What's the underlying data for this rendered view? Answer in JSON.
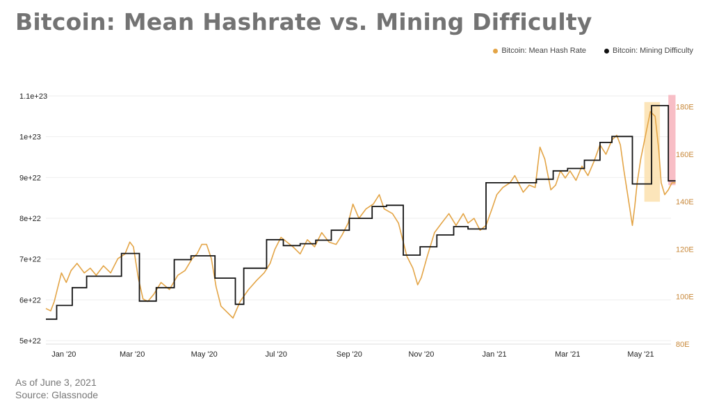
{
  "title": "Bitcoin: Mean Hashrate vs. Mining Difficulty",
  "footer": {
    "as_of": "As of June 3, 2021",
    "source": "Source: Glassnode"
  },
  "colors": {
    "hashrate": "#E3A445",
    "difficulty": "#111111",
    "highlight_orange": "#FBE1AE",
    "highlight_red": "#F7B3BC",
    "grid": "#EEEEEE"
  },
  "chart_data": {
    "type": "line",
    "title": "Bitcoin: Mean Hashrate vs. Mining Difficulty",
    "legend_position": "top-right",
    "grid": true,
    "x_range": [
      "2019-12-24",
      "2021-06-03"
    ],
    "x_ticks": [
      "Jan '20",
      "Mar '20",
      "May '20",
      "Jul '20",
      "Sep '20",
      "Nov '20",
      "Jan '21",
      "Mar '21",
      "May '21"
    ],
    "y_left": {
      "ticks": [
        "1.1e+23",
        "1e+23",
        "9e+22",
        "8e+22",
        "7e+22",
        "6e+22",
        "5e+22"
      ],
      "range": [
        5e+22,
        1.1e+23
      ]
    },
    "y_right": {
      "ticks": [
        "180E",
        "160E",
        "140E",
        "120E",
        "100E",
        "80E"
      ],
      "range": [
        80,
        184
      ]
    },
    "highlights": [
      {
        "from": "2021-05-06",
        "to": "2021-05-19",
        "y_from": 140,
        "y_to": 182,
        "color": "orange"
      },
      {
        "from": "2021-05-26",
        "to": "2021-06-01",
        "y_from": 147,
        "y_to": 185,
        "color": "red"
      }
    ],
    "series": [
      {
        "name": "Bitcoin: Mean Hash Rate",
        "axis": "right",
        "color": "#E3A445",
        "points": [
          [
            "2019-12-24",
            95
          ],
          [
            "2019-12-28",
            94
          ],
          [
            "2019-12-31",
            98
          ],
          [
            "2020-01-03",
            104
          ],
          [
            "2020-01-06",
            110
          ],
          [
            "2020-01-10",
            106
          ],
          [
            "2020-01-14",
            111
          ],
          [
            "2020-01-19",
            114
          ],
          [
            "2020-01-25",
            110
          ],
          [
            "2020-01-30",
            112
          ],
          [
            "2020-02-04",
            109
          ],
          [
            "2020-02-10",
            113
          ],
          [
            "2020-02-16",
            110
          ],
          [
            "2020-02-22",
            116
          ],
          [
            "2020-02-28",
            118
          ],
          [
            "2020-03-03",
            123
          ],
          [
            "2020-03-06",
            121
          ],
          [
            "2020-03-10",
            108
          ],
          [
            "2020-03-14",
            99
          ],
          [
            "2020-03-18",
            98
          ],
          [
            "2020-03-23",
            101
          ],
          [
            "2020-03-29",
            106
          ],
          [
            "2020-04-05",
            103
          ],
          [
            "2020-04-12",
            109
          ],
          [
            "2020-04-18",
            111
          ],
          [
            "2020-04-24",
            116
          ],
          [
            "2020-04-28",
            118
          ],
          [
            "2020-05-02",
            122
          ],
          [
            "2020-05-06",
            122
          ],
          [
            "2020-05-10",
            116
          ],
          [
            "2020-05-14",
            104
          ],
          [
            "2020-05-18",
            96
          ],
          [
            "2020-05-22",
            94
          ],
          [
            "2020-05-28",
            91
          ],
          [
            "2020-06-03",
            98
          ],
          [
            "2020-06-10",
            103
          ],
          [
            "2020-06-17",
            107
          ],
          [
            "2020-06-23",
            110
          ],
          [
            "2020-06-28",
            114
          ],
          [
            "2020-07-02",
            120
          ],
          [
            "2020-07-07",
            125
          ],
          [
            "2020-07-12",
            123
          ],
          [
            "2020-07-17",
            121
          ],
          [
            "2020-07-23",
            118
          ],
          [
            "2020-07-29",
            124
          ],
          [
            "2020-08-04",
            121
          ],
          [
            "2020-08-10",
            127
          ],
          [
            "2020-08-16",
            123
          ],
          [
            "2020-08-22",
            122
          ],
          [
            "2020-08-27",
            126
          ],
          [
            "2020-09-01",
            131
          ],
          [
            "2020-09-05",
            139
          ],
          [
            "2020-09-10",
            133
          ],
          [
            "2020-09-16",
            137
          ],
          [
            "2020-09-22",
            139
          ],
          [
            "2020-09-27",
            143
          ],
          [
            "2020-10-01",
            137
          ],
          [
            "2020-10-08",
            135
          ],
          [
            "2020-10-13",
            131
          ],
          [
            "2020-10-20",
            117
          ],
          [
            "2020-10-25",
            112
          ],
          [
            "2020-10-29",
            105
          ],
          [
            "2020-11-01",
            108
          ],
          [
            "2020-11-06",
            117
          ],
          [
            "2020-11-12",
            127
          ],
          [
            "2020-11-18",
            131
          ],
          [
            "2020-11-24",
            135
          ],
          [
            "2020-11-30",
            130
          ],
          [
            "2020-12-06",
            135
          ],
          [
            "2020-12-10",
            131
          ],
          [
            "2020-12-15",
            133
          ],
          [
            "2020-12-20",
            128
          ],
          [
            "2020-12-25",
            130
          ],
          [
            "2020-12-30",
            137
          ],
          [
            "2021-01-03",
            143
          ],
          [
            "2021-01-08",
            146
          ],
          [
            "2021-01-14",
            148
          ],
          [
            "2021-01-18",
            151
          ],
          [
            "2021-01-22",
            147
          ],
          [
            "2021-01-25",
            144
          ],
          [
            "2021-01-30",
            147
          ],
          [
            "2021-02-04",
            146
          ],
          [
            "2021-02-08",
            163
          ],
          [
            "2021-02-12",
            158
          ],
          [
            "2021-02-17",
            145
          ],
          [
            "2021-02-21",
            147
          ],
          [
            "2021-02-25",
            153
          ],
          [
            "2021-03-01",
            150
          ],
          [
            "2021-03-05",
            153
          ],
          [
            "2021-03-10",
            149
          ],
          [
            "2021-03-15",
            155
          ],
          [
            "2021-03-20",
            151
          ],
          [
            "2021-03-25",
            157
          ],
          [
            "2021-03-30",
            164
          ],
          [
            "2021-04-04",
            160
          ],
          [
            "2021-04-09",
            166
          ],
          [
            "2021-04-13",
            168
          ],
          [
            "2021-04-16",
            164
          ],
          [
            "2021-04-19",
            153
          ],
          [
            "2021-04-23",
            140
          ],
          [
            "2021-04-26",
            130
          ],
          [
            "2021-04-28",
            138
          ],
          [
            "2021-04-30",
            148
          ],
          [
            "2021-05-03",
            158
          ],
          [
            "2021-05-07",
            168
          ],
          [
            "2021-05-11",
            178
          ],
          [
            "2021-05-15",
            176
          ],
          [
            "2021-05-18",
            162
          ],
          [
            "2021-05-20",
            148
          ],
          [
            "2021-05-23",
            143
          ],
          [
            "2021-05-26",
            145
          ],
          [
            "2021-05-29",
            148
          ],
          [
            "2021-06-01",
            148
          ]
        ]
      },
      {
        "name": "Bitcoin: Mining Difficulty",
        "axis": "right",
        "color": "#111111",
        "steps": [
          [
            "2019-12-24",
            90.5
          ],
          [
            "2020-01-02",
            96.3
          ],
          [
            "2020-01-15",
            103.8
          ],
          [
            "2020-01-27",
            108.6
          ],
          [
            "2020-02-25",
            118.2
          ],
          [
            "2020-03-11",
            98.1
          ],
          [
            "2020-03-25",
            103.8
          ],
          [
            "2020-04-09",
            115.6
          ],
          [
            "2020-04-23",
            117.2
          ],
          [
            "2020-05-13",
            107.8
          ],
          [
            "2020-05-30",
            96.8
          ],
          [
            "2020-06-06",
            112.0
          ],
          [
            "2020-06-25",
            124.0
          ],
          [
            "2020-07-09",
            121.5
          ],
          [
            "2020-07-23",
            122.3
          ],
          [
            "2020-08-05",
            123.8
          ],
          [
            "2020-08-18",
            128.0
          ],
          [
            "2020-09-02",
            133.0
          ],
          [
            "2020-09-21",
            138.0
          ],
          [
            "2020-10-03",
            138.5
          ],
          [
            "2020-10-17",
            117.5
          ],
          [
            "2020-10-31",
            121.0
          ],
          [
            "2020-11-14",
            126.0
          ],
          [
            "2020-11-28",
            129.5
          ],
          [
            "2020-12-10",
            128.5
          ],
          [
            "2020-12-25",
            148.0
          ],
          [
            "2021-02-05",
            149.5
          ],
          [
            "2021-02-19",
            153.0
          ],
          [
            "2021-03-03",
            154.0
          ],
          [
            "2021-03-17",
            157.5
          ],
          [
            "2021-03-30",
            165.0
          ],
          [
            "2021-04-09",
            167.5
          ],
          [
            "2021-04-26",
            147.5
          ],
          [
            "2021-05-12",
            180.5
          ],
          [
            "2021-05-26",
            148.8
          ],
          [
            "2021-06-01",
            148.8
          ]
        ]
      }
    ]
  }
}
